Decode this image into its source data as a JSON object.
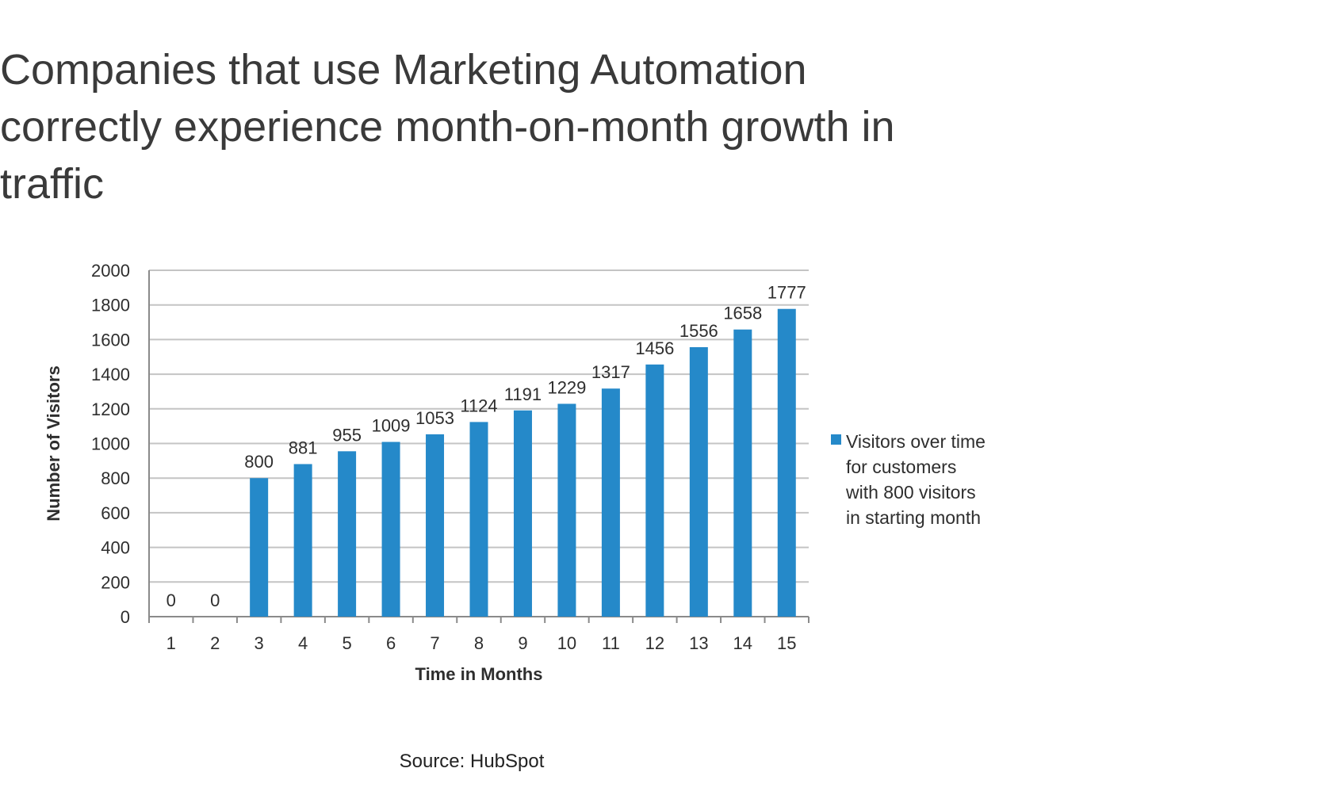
{
  "headline": "Companies that use Marketing Automation correctly experience month-on-month growth in traffic",
  "source_note": "Source: HubSpot",
  "colors": {
    "bar": "#2589c9",
    "grid": "#c4c4c4",
    "axis": "#8a8a8a",
    "text": "#2e2e2e",
    "headline": "#3a3a3a"
  },
  "chart_data": {
    "type": "bar",
    "title": "",
    "xlabel": "Time in Months",
    "ylabel": "Number of Visitors",
    "categories": [
      "1",
      "2",
      "3",
      "4",
      "5",
      "6",
      "7",
      "8",
      "9",
      "10",
      "11",
      "12",
      "13",
      "14",
      "15"
    ],
    "series": [
      {
        "name": "Visitors over time for customers with 800 visitors in starting month",
        "values": [
          0,
          0,
          800,
          881,
          955,
          1009,
          1053,
          1124,
          1191,
          1229,
          1317,
          1456,
          1556,
          1658,
          1777
        ]
      }
    ],
    "data_labels": [
      "0",
      "0",
      "800",
      "881",
      "955",
      "1009",
      "1053",
      "1124",
      "1191",
      "1229",
      "1317",
      "1456",
      "1556",
      "1658",
      "1777"
    ],
    "yticks": [
      "0",
      "200",
      "400",
      "600",
      "800",
      "1000",
      "1200",
      "1400",
      "1600",
      "1800",
      "2000"
    ],
    "ylim": [
      0,
      2000
    ],
    "grid": true,
    "legend_position": "right"
  }
}
